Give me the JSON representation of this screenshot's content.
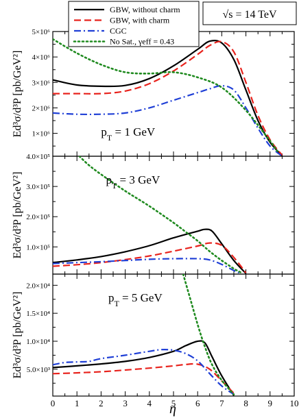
{
  "energy_label": "√s = 14 TeV",
  "legend": {
    "items": [
      {
        "label": "GBW, without charm",
        "color": "#000000",
        "dash": "solid"
      },
      {
        "label": "GBW, with charm",
        "color": "#e8221c",
        "dash": "dashed"
      },
      {
        "label": "CGC",
        "color": "#1f3fd6",
        "dash": "dashdot"
      },
      {
        "label": "No Sat., γeff = 0.43",
        "color": "#1f8a1f",
        "dash": "dotted"
      }
    ]
  },
  "xlabel": "η",
  "ylabel": "Ed³σ/d³P [pb/GeV²]",
  "colors": {
    "black": "#000000",
    "red": "#e8221c",
    "blue": "#1f3fd6",
    "green": "#1f8a1f"
  },
  "chart_data": [
    {
      "type": "line",
      "annotation": "pT = 1 GeV",
      "xlim": [
        0,
        10
      ],
      "ylim": [
        100000,
        5000000
      ],
      "yticks": [
        1000000,
        2000000,
        3000000,
        4000000,
        5000000
      ],
      "ytick_labels": [
        "1×10⁶",
        "2×10⁶",
        "3×10⁶",
        "4×10⁶",
        "5×10⁶"
      ],
      "xticks": [
        0,
        1,
        2,
        3,
        4,
        5,
        6,
        7,
        8,
        9,
        10
      ],
      "series": [
        {
          "name": "GBW, without charm",
          "color": "black",
          "dash": "solid",
          "x": [
            0,
            1,
            2,
            3,
            4,
            5,
            6,
            6.5,
            7,
            7.5,
            8,
            8.5,
            9,
            9.5
          ],
          "y": [
            3100000,
            2900000,
            2850000,
            2880000,
            3150000,
            3650000,
            4300000,
            4620000,
            4550000,
            3900000,
            2700000,
            1500000,
            650000,
            120000
          ]
        },
        {
          "name": "GBW, with charm",
          "color": "red",
          "dash": "dashed",
          "x": [
            0,
            1,
            2,
            3,
            4,
            5,
            6,
            6.5,
            7,
            7.5,
            8,
            8.5,
            9,
            9.5
          ],
          "y": [
            2560000,
            2560000,
            2560000,
            2660000,
            2950000,
            3450000,
            4100000,
            4450000,
            4600000,
            4200000,
            3000000,
            1700000,
            750000,
            140000
          ]
        },
        {
          "name": "CGC",
          "color": "blue",
          "dash": "dashdot",
          "x": [
            0,
            1,
            2,
            3,
            4,
            5,
            6,
            6.5,
            7,
            7.5,
            8,
            8.5,
            9,
            9.5
          ],
          "y": [
            1800000,
            1750000,
            1750000,
            1800000,
            2000000,
            2300000,
            2600000,
            2750000,
            2870000,
            2700000,
            2000000,
            1200000,
            500000,
            100000
          ]
        },
        {
          "name": "No Sat., γeff = 0.43",
          "color": "green",
          "dash": "dotted",
          "x": [
            0,
            1,
            2,
            3,
            4,
            5,
            6,
            7,
            8,
            9,
            9.3
          ],
          "y": [
            4700000,
            4150000,
            3700000,
            3400000,
            3350000,
            3400000,
            3200000,
            2800000,
            1900000,
            700000,
            300000
          ]
        }
      ]
    },
    {
      "type": "line",
      "annotation": "pT = 3 GeV",
      "xlim": [
        0,
        10
      ],
      "ylim": [
        10000,
        400000
      ],
      "yticks": [
        100000,
        200000,
        300000,
        400000
      ],
      "ytick_labels": [
        "1.0×10⁵",
        "2.0×10⁵",
        "3.0×10⁵",
        "4.0×10⁵"
      ],
      "xticks": [
        0,
        1,
        2,
        3,
        4,
        5,
        6,
        7,
        8,
        9,
        10
      ],
      "series": [
        {
          "name": "GBW, without charm",
          "color": "black",
          "dash": "solid",
          "x": [
            0,
            1,
            2,
            3,
            4,
            5,
            6,
            6.3,
            6.6,
            7,
            7.5,
            8
          ],
          "y": [
            48000,
            57000,
            68000,
            84000,
            104000,
            130000,
            152000,
            158000,
            152000,
            110000,
            55000,
            12000
          ]
        },
        {
          "name": "GBW, with charm",
          "color": "red",
          "dash": "dashed",
          "x": [
            0,
            1,
            2,
            3,
            4,
            5,
            6,
            6.5,
            7,
            7.5,
            8
          ],
          "y": [
            36000,
            41000,
            48000,
            58000,
            70000,
            86000,
            103000,
            113000,
            105000,
            65000,
            14000
          ]
        },
        {
          "name": "CGC",
          "color": "blue",
          "dash": "dashdot",
          "x": [
            0,
            1,
            2,
            3,
            4,
            5,
            6,
            6.5,
            7,
            7.5,
            7.8
          ],
          "y": [
            45000,
            48000,
            51000,
            55000,
            59000,
            61000,
            61000,
            57000,
            42000,
            22000,
            12000
          ]
        },
        {
          "name": "No Sat., γeff = 0.43",
          "color": "green",
          "dash": "dotted",
          "x": [
            1.1,
            1.5,
            2,
            3,
            4,
            5,
            5.5,
            6,
            6.5,
            7,
            7.5,
            7.8
          ],
          "y": [
            400000,
            370000,
            340000,
            285000,
            235000,
            180000,
            150000,
            120000,
            85000,
            55000,
            28000,
            15000
          ]
        }
      ]
    },
    {
      "type": "line",
      "annotation": "pT = 5 GeV",
      "xlim": [
        0,
        10
      ],
      "ylim": [
        200,
        22000
      ],
      "yticks": [
        5000,
        10000,
        15000,
        20000
      ],
      "ytick_labels": [
        "5.0×10³",
        "1.0×10⁴",
        "1.5×10⁴",
        "2.0×10⁴"
      ],
      "xticks": [
        0,
        1,
        2,
        3,
        4,
        5,
        6,
        7,
        8,
        9,
        10
      ],
      "xtick_labels": [
        "0",
        "1",
        "2",
        "3",
        "4",
        "5",
        "6",
        "7",
        "8",
        "9",
        "10"
      ],
      "series": [
        {
          "name": "GBW, without charm",
          "color": "black",
          "dash": "solid",
          "x": [
            0,
            1,
            2,
            3,
            4,
            5,
            5.5,
            6,
            6.3,
            6.6,
            7,
            7.5
          ],
          "y": [
            5300,
            5600,
            5950,
            6400,
            7100,
            8200,
            9200,
            10000,
            9700,
            7200,
            3800,
            300
          ]
        },
        {
          "name": "GBW, with charm",
          "color": "red",
          "dash": "dashed",
          "x": [
            0,
            1,
            2,
            3,
            4,
            5,
            5.5,
            6,
            6.5,
            7,
            7.5
          ],
          "y": [
            4200,
            4350,
            4550,
            4850,
            5200,
            5600,
            5850,
            5900,
            5000,
            2900,
            700
          ]
        },
        {
          "name": "CGC",
          "color": "blue",
          "dash": "dashdot",
          "x": [
            0,
            0.5,
            1,
            1.5,
            2,
            3,
            4,
            4.5,
            5,
            5.5,
            6,
            6.5,
            7,
            7.5
          ],
          "y": [
            5800,
            6200,
            6300,
            6400,
            6900,
            7500,
            8200,
            8500,
            8400,
            7800,
            6500,
            4200,
            2000,
            500
          ]
        },
        {
          "name": "No Sat., γeff = 0.43",
          "color": "green",
          "dash": "dotted",
          "x": [
            5.4,
            5.7,
            6,
            6.3,
            6.6,
            7,
            7.5
          ],
          "y": [
            22000,
            17500,
            13000,
            9000,
            5800,
            3000,
            500
          ]
        }
      ]
    }
  ]
}
